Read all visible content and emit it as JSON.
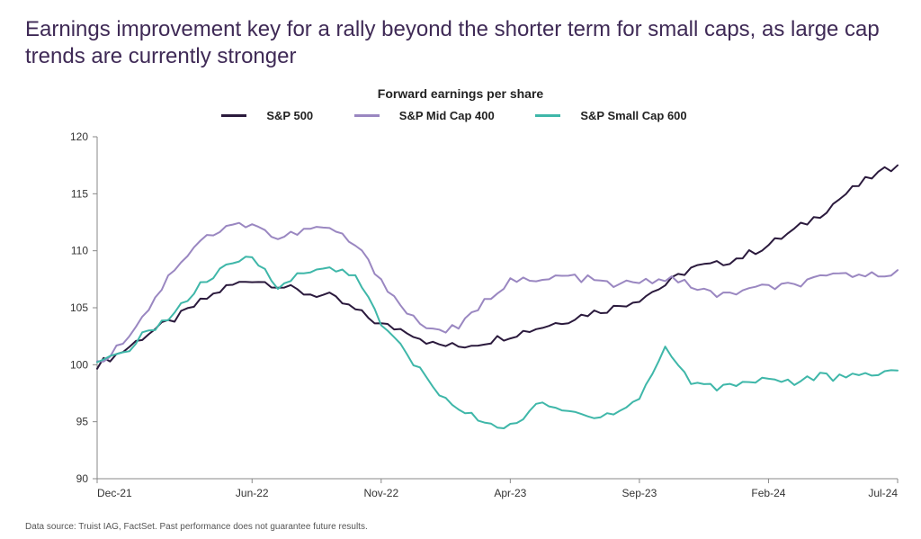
{
  "title": "Earnings improvement key for a rally beyond the shorter term for small caps, as large cap trends are currently stronger",
  "chart": {
    "type": "line",
    "title": "Forward earnings per share",
    "background_color": "#ffffff",
    "axis_color": "#888888",
    "axis_fontsize": 12,
    "title_fontsize": 14,
    "line_width": 2,
    "ylim": [
      90,
      120
    ],
    "ytick_step": 5,
    "yticks": [
      90,
      95,
      100,
      105,
      110,
      115,
      120
    ],
    "x_index_range": [
      0,
      31
    ],
    "xticks": [
      {
        "i": 0,
        "label": "Dec-21"
      },
      {
        "i": 6,
        "label": "Jun-22"
      },
      {
        "i": 11,
        "label": "Nov-22"
      },
      {
        "i": 16,
        "label": "Apr-23"
      },
      {
        "i": 21,
        "label": "Sep-23"
      },
      {
        "i": 26,
        "label": "Feb-24"
      },
      {
        "i": 31,
        "label": "Jul-24"
      }
    ],
    "series": [
      {
        "name": "S&P 500",
        "color": "#2b1a3d",
        "values": [
          100.0,
          101.2,
          102.8,
          104.0,
          105.5,
          106.8,
          107.5,
          107.0,
          106.3,
          106.0,
          104.8,
          103.5,
          103.0,
          101.8,
          101.6,
          102.0,
          102.6,
          103.2,
          103.8,
          104.5,
          105.0,
          105.8,
          107.0,
          108.5,
          108.8,
          109.5,
          110.5,
          111.8,
          113.2,
          115.0,
          116.5,
          117.5
        ]
      },
      {
        "name": "S&P Mid Cap 400",
        "color": "#9a87c1",
        "values": [
          100.0,
          102.0,
          105.0,
          108.5,
          111.0,
          112.0,
          112.5,
          111.0,
          111.8,
          112.0,
          110.5,
          107.5,
          104.5,
          103.0,
          103.2,
          105.5,
          107.5,
          107.2,
          107.8,
          107.5,
          107.0,
          107.2,
          107.6,
          107.0,
          106.0,
          106.5,
          106.8,
          107.0,
          107.5,
          108.0,
          107.8,
          108.3
        ]
      },
      {
        "name": "S&P Small Cap 600",
        "color": "#3fb7a9",
        "values": [
          100.0,
          101.0,
          103.0,
          104.5,
          107.0,
          108.5,
          109.5,
          107.0,
          108.0,
          108.5,
          108.0,
          103.5,
          101.0,
          98.0,
          96.0,
          95.0,
          94.5,
          96.5,
          96.0,
          95.5,
          95.8,
          97.0,
          101.5,
          98.5,
          98.0,
          98.5,
          98.8,
          98.5,
          99.0,
          98.8,
          99.2,
          99.5
        ]
      }
    ]
  },
  "footnote": "Data source: Truist IAG, FactSet. Past performance does not guarantee future results."
}
